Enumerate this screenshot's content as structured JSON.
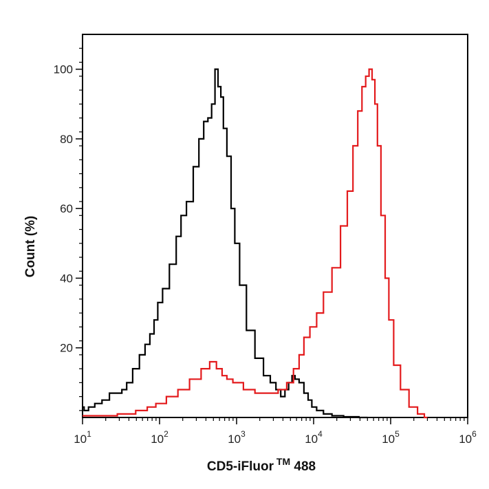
{
  "chart_data": {
    "type": "line",
    "xlabel": "CD5-iFluor",
    "xlabel_sup": "TM",
    "xlabel_suffix": " 488",
    "ylabel": "Count (%)",
    "xscale": "log",
    "xlim": [
      10,
      1000000
    ],
    "ylim": [
      0,
      110
    ],
    "x_ticks": [
      {
        "base": "10",
        "exp": "1"
      },
      {
        "base": "10",
        "exp": "2"
      },
      {
        "base": "10",
        "exp": "3"
      },
      {
        "base": "10",
        "exp": "4"
      },
      {
        "base": "10",
        "exp": "5"
      },
      {
        "base": "10",
        "exp": "6"
      }
    ],
    "y_ticks": [
      "20",
      "40",
      "60",
      "80",
      "100"
    ],
    "grid": false,
    "legend": "none",
    "series": [
      {
        "color": "#000000",
        "x": [
          10,
          11,
          13,
          16,
          20,
          25,
          30,
          35,
          40,
          50,
          60,
          70,
          80,
          90,
          100,
          120,
          150,
          180,
          200,
          250,
          300,
          350,
          400,
          450,
          500,
          550,
          600,
          650,
          700,
          800,
          900,
          1000,
          1200,
          1500,
          2000,
          2500,
          3000,
          3500,
          4000,
          4500,
          5000,
          5500,
          6000,
          7000,
          8000,
          9000,
          10000,
          12000,
          15000,
          20000,
          30000,
          50000
        ],
        "y": [
          3,
          2,
          3,
          4,
          5,
          7,
          7,
          8,
          10,
          14,
          18,
          21,
          24,
          28,
          33,
          37,
          44,
          52,
          58,
          62,
          72,
          80,
          85,
          86,
          90,
          100,
          95,
          92,
          83,
          75,
          60,
          50,
          38,
          25,
          17,
          12,
          10,
          8,
          6,
          8,
          10,
          12,
          11,
          10,
          7,
          5,
          3,
          2,
          1,
          0.5,
          0.2,
          0
        ]
      },
      {
        "color": "#e31a1c",
        "x": [
          10,
          20,
          40,
          60,
          80,
          100,
          150,
          200,
          300,
          400,
          500,
          600,
          700,
          800,
          1000,
          1500,
          2000,
          3000,
          4000,
          5000,
          6000,
          7000,
          8000,
          10000,
          12000,
          15000,
          20000,
          25000,
          30000,
          35000,
          40000,
          45000,
          50000,
          55000,
          60000,
          65000,
          70000,
          80000,
          90000,
          100000,
          120000,
          150000,
          200000,
          250000,
          300000
        ],
        "y": [
          0.5,
          0.5,
          1,
          2,
          3,
          4,
          6,
          8,
          11,
          14,
          16,
          14,
          12,
          11,
          10,
          8,
          7,
          7,
          8,
          10,
          14,
          18,
          23,
          26,
          30,
          36,
          43,
          55,
          65,
          78,
          88,
          95,
          98,
          100,
          97,
          90,
          78,
          58,
          40,
          28,
          15,
          8,
          3,
          1,
          0
        ]
      }
    ]
  }
}
